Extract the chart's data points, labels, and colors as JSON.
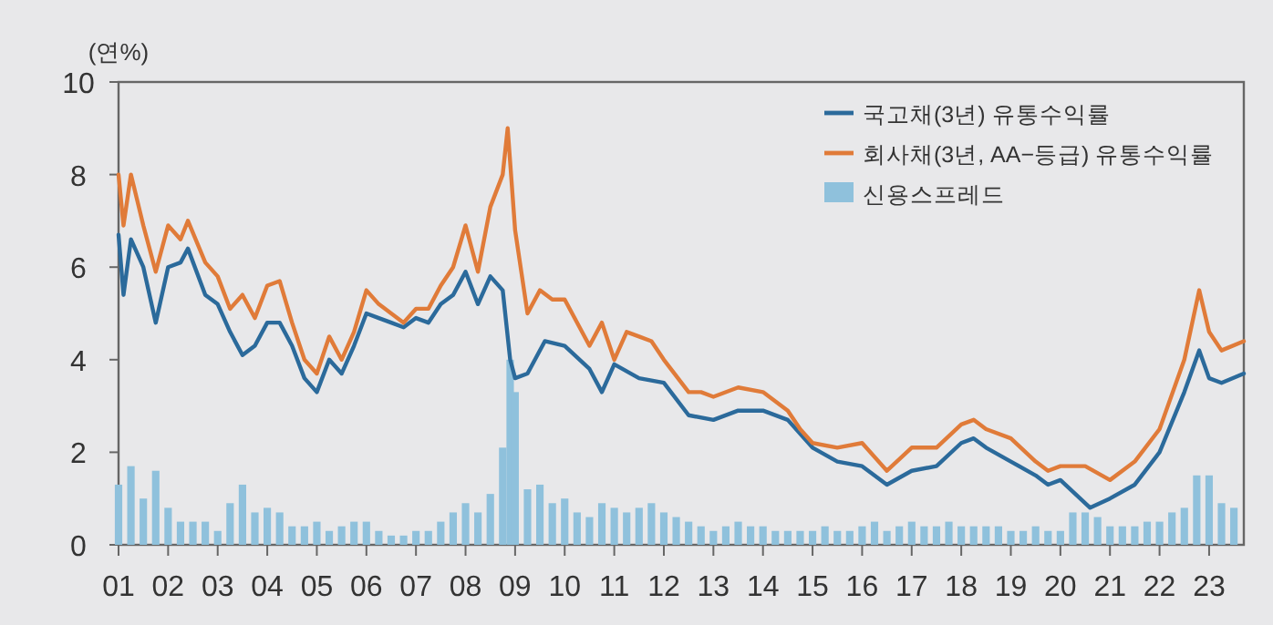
{
  "chart_data": {
    "type": "line",
    "ylabel": "(연%)",
    "legend": "top right",
    "grid": false,
    "xlim": [
      2001,
      2023.7
    ],
    "ylim": [
      0,
      10
    ],
    "yticks": [
      0,
      2,
      4,
      6,
      8,
      10
    ],
    "xticks": [
      {
        "value": 2001,
        "label": "01"
      },
      {
        "value": 2002,
        "label": "02"
      },
      {
        "value": 2003,
        "label": "03"
      },
      {
        "value": 2004,
        "label": "04"
      },
      {
        "value": 2005,
        "label": "05"
      },
      {
        "value": 2006,
        "label": "06"
      },
      {
        "value": 2007,
        "label": "07"
      },
      {
        "value": 2008,
        "label": "08"
      },
      {
        "value": 2009,
        "label": "09"
      },
      {
        "value": 2010,
        "label": "10"
      },
      {
        "value": 2011,
        "label": "11"
      },
      {
        "value": 2012,
        "label": "12"
      },
      {
        "value": 2013,
        "label": "13"
      },
      {
        "value": 2014,
        "label": "14"
      },
      {
        "value": 2015,
        "label": "15"
      },
      {
        "value": 2016,
        "label": "16"
      },
      {
        "value": 2017,
        "label": "17"
      },
      {
        "value": 2018,
        "label": "18"
      },
      {
        "value": 2019,
        "label": "19"
      },
      {
        "value": 2020,
        "label": "20"
      },
      {
        "value": 2021,
        "label": "21"
      },
      {
        "value": 2022,
        "label": "22"
      },
      {
        "value": 2023,
        "label": "23"
      }
    ],
    "series": [
      {
        "name": "국고채(3년) 유통수익률",
        "color": "#2b6a9b",
        "x": [
          2001,
          2001.1,
          2001.25,
          2001.5,
          2001.75,
          2002,
          2002.25,
          2002.4,
          2002.75,
          2003,
          2003.25,
          2003.5,
          2003.75,
          2004,
          2004.25,
          2004.5,
          2004.75,
          2005,
          2005.25,
          2005.5,
          2005.75,
          2006,
          2006.25,
          2006.5,
          2006.75,
          2007,
          2007.25,
          2007.5,
          2007.75,
          2008,
          2008.25,
          2008.5,
          2008.75,
          2008.9,
          2009,
          2009.25,
          2009.6,
          2010,
          2010.5,
          2010.75,
          2011,
          2011.5,
          2012,
          2012.5,
          2013,
          2013.5,
          2014,
          2014.5,
          2014.75,
          2015,
          2015.5,
          2016,
          2016.5,
          2017,
          2017.5,
          2018,
          2018.25,
          2018.5,
          2019,
          2019.5,
          2019.75,
          2020,
          2020.6,
          2021,
          2021.5,
          2022,
          2022.5,
          2022.8,
          2023,
          2023.25,
          2023.7
        ],
        "values": [
          6.7,
          5.4,
          6.6,
          6.0,
          4.8,
          6.0,
          6.1,
          6.4,
          5.4,
          5.2,
          4.6,
          4.1,
          4.3,
          4.8,
          4.8,
          4.3,
          3.6,
          3.3,
          4.0,
          3.7,
          4.3,
          5.0,
          4.9,
          4.8,
          4.7,
          4.9,
          4.8,
          5.2,
          5.4,
          5.9,
          5.2,
          5.8,
          5.5,
          4.0,
          3.6,
          3.7,
          4.4,
          4.3,
          3.8,
          3.3,
          3.9,
          3.6,
          3.5,
          2.8,
          2.7,
          2.9,
          2.9,
          2.7,
          2.4,
          2.1,
          1.8,
          1.7,
          1.3,
          1.6,
          1.7,
          2.2,
          2.3,
          2.1,
          1.8,
          1.5,
          1.3,
          1.4,
          0.8,
          1.0,
          1.3,
          2.0,
          3.3,
          4.2,
          3.6,
          3.5,
          3.7
        ]
      },
      {
        "name": "회사채(3년, AA−등급) 유통수익률",
        "color": "#e07b39",
        "x": [
          2001,
          2001.1,
          2001.25,
          2001.5,
          2001.75,
          2002,
          2002.25,
          2002.4,
          2002.75,
          2003,
          2003.25,
          2003.5,
          2003.75,
          2004,
          2004.25,
          2004.5,
          2004.75,
          2005,
          2005.25,
          2005.5,
          2005.75,
          2006,
          2006.25,
          2006.5,
          2006.75,
          2007,
          2007.25,
          2007.5,
          2007.75,
          2008,
          2008.25,
          2008.5,
          2008.75,
          2008.85,
          2009,
          2009.25,
          2009.5,
          2009.75,
          2010,
          2010.5,
          2010.75,
          2011,
          2011.25,
          2011.5,
          2011.75,
          2012,
          2012.5,
          2012.75,
          2013,
          2013.5,
          2014,
          2014.5,
          2014.75,
          2015,
          2015.5,
          2016,
          2016.5,
          2017,
          2017.5,
          2018,
          2018.25,
          2018.5,
          2019,
          2019.5,
          2019.75,
          2020,
          2020.5,
          2021,
          2021.5,
          2022,
          2022.5,
          2022.8,
          2023,
          2023.25,
          2023.7
        ],
        "values": [
          8.0,
          6.9,
          8.0,
          6.9,
          5.9,
          6.9,
          6.6,
          7.0,
          6.1,
          5.8,
          5.1,
          5.4,
          4.9,
          5.6,
          5.7,
          4.8,
          4.0,
          3.7,
          4.5,
          4.0,
          4.6,
          5.5,
          5.2,
          5.0,
          4.8,
          5.1,
          5.1,
          5.6,
          6.0,
          6.9,
          5.9,
          7.3,
          8.0,
          9.0,
          6.8,
          5.0,
          5.5,
          5.3,
          5.3,
          4.3,
          4.8,
          4.0,
          4.6,
          4.5,
          4.4,
          4.0,
          3.3,
          3.3,
          3.2,
          3.4,
          3.3,
          2.9,
          2.5,
          2.2,
          2.1,
          2.2,
          1.6,
          2.1,
          2.1,
          2.6,
          2.7,
          2.5,
          2.3,
          1.8,
          1.6,
          1.7,
          1.7,
          1.4,
          1.8,
          2.5,
          4.0,
          5.5,
          4.6,
          4.2,
          4.4
        ]
      },
      {
        "name": "신용스프레드",
        "type": "bar",
        "color": "#8fc1dc",
        "x": [
          2001,
          2001.25,
          2001.5,
          2001.75,
          2002,
          2002.25,
          2002.5,
          2002.75,
          2003,
          2003.25,
          2003.5,
          2003.75,
          2004,
          2004.25,
          2004.5,
          2004.75,
          2005,
          2005.25,
          2005.5,
          2005.75,
          2006,
          2006.25,
          2006.5,
          2006.75,
          2007,
          2007.25,
          2007.5,
          2007.75,
          2008,
          2008.25,
          2008.5,
          2008.75,
          2008.9,
          2009,
          2009.25,
          2009.5,
          2009.75,
          2010,
          2010.25,
          2010.5,
          2010.75,
          2011,
          2011.25,
          2011.5,
          2011.75,
          2012,
          2012.25,
          2012.5,
          2012.75,
          2013,
          2013.25,
          2013.5,
          2013.75,
          2014,
          2014.25,
          2014.5,
          2014.75,
          2015,
          2015.25,
          2015.5,
          2015.75,
          2016,
          2016.25,
          2016.5,
          2016.75,
          2017,
          2017.25,
          2017.5,
          2017.75,
          2018,
          2018.25,
          2018.5,
          2018.75,
          2019,
          2019.25,
          2019.5,
          2019.75,
          2020,
          2020.25,
          2020.5,
          2020.75,
          2021,
          2021.25,
          2021.5,
          2021.75,
          2022,
          2022.25,
          2022.5,
          2022.75,
          2023,
          2023.25,
          2023.5
        ],
        "values": [
          1.3,
          1.7,
          1.0,
          1.6,
          0.8,
          0.5,
          0.5,
          0.5,
          0.3,
          0.9,
          1.3,
          0.7,
          0.8,
          0.7,
          0.4,
          0.4,
          0.5,
          0.3,
          0.4,
          0.5,
          0.5,
          0.3,
          0.2,
          0.2,
          0.3,
          0.3,
          0.5,
          0.7,
          0.9,
          0.7,
          1.1,
          2.1,
          4.0,
          3.3,
          1.2,
          1.3,
          0.9,
          1.0,
          0.7,
          0.6,
          0.9,
          0.8,
          0.7,
          0.8,
          0.9,
          0.7,
          0.6,
          0.5,
          0.4,
          0.3,
          0.4,
          0.5,
          0.4,
          0.4,
          0.3,
          0.3,
          0.3,
          0.3,
          0.4,
          0.3,
          0.3,
          0.4,
          0.5,
          0.3,
          0.4,
          0.5,
          0.4,
          0.4,
          0.5,
          0.4,
          0.4,
          0.4,
          0.4,
          0.3,
          0.3,
          0.4,
          0.3,
          0.3,
          0.7,
          0.7,
          0.6,
          0.4,
          0.4,
          0.4,
          0.5,
          0.5,
          0.7,
          0.8,
          1.5,
          1.5,
          0.9,
          0.8
        ]
      }
    ]
  }
}
